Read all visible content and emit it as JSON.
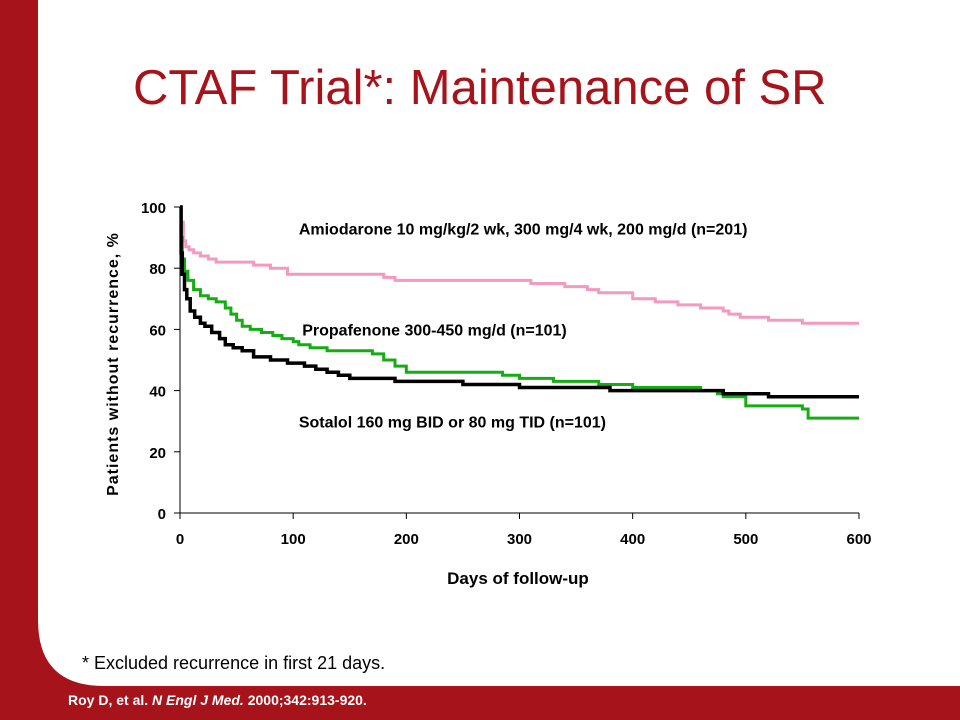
{
  "slide": {
    "title": "CTAF Trial*: Maintenance of SR",
    "footnote": "* Excluded recurrence in first 21 days.",
    "citation": {
      "authors": "Roy D, et al. ",
      "journal": "N Engl J Med.",
      "details": " 2000;342:913-920."
    }
  },
  "colors": {
    "brand_red": "#a6131a",
    "amiodarone": "#f49ac1",
    "propafenone": "#14ad14",
    "sotalol": "#000000"
  },
  "chart_data": {
    "type": "line",
    "step": true,
    "title": "",
    "xlabel": "Days of follow-up",
    "ylabel": "Patients without recurrence, %",
    "xlim": [
      0,
      600
    ],
    "ylim": [
      0,
      100
    ],
    "xticks": [
      0,
      100,
      200,
      300,
      400,
      500,
      600
    ],
    "yticks": [
      0,
      20,
      40,
      60,
      80,
      100
    ],
    "grid": false,
    "legend": "inline-labels",
    "series": [
      {
        "name": "Amiodarone 10 mg/kg/2 wk, 300 mg/4 wk, 200 mg/d (n=201)",
        "color": "#f49ac1",
        "x": [
          0,
          1,
          3,
          5,
          8,
          12,
          18,
          25,
          32,
          40,
          65,
          80,
          95,
          180,
          190,
          270,
          310,
          325,
          340,
          360,
          370,
          380,
          400,
          420,
          440,
          460,
          470,
          480,
          485,
          495,
          520,
          545,
          550,
          600
        ],
        "y": [
          100,
          95,
          89,
          87,
          86,
          85,
          84,
          83,
          82,
          82,
          81,
          80,
          78,
          77,
          76,
          76,
          75,
          75,
          74,
          73,
          72,
          72,
          70,
          69,
          68,
          67,
          67,
          66,
          65,
          64,
          63,
          63,
          62,
          62
        ]
      },
      {
        "name": "Propafenone 300-450 mg/d (n=101)",
        "color": "#14ad14",
        "x": [
          0,
          1,
          2,
          4,
          7,
          12,
          18,
          25,
          32,
          40,
          45,
          50,
          55,
          62,
          72,
          82,
          90,
          100,
          105,
          115,
          130,
          160,
          170,
          180,
          190,
          200,
          260,
          285,
          300,
          330,
          370,
          400,
          460,
          475,
          480,
          500,
          530,
          550,
          555,
          600
        ],
        "y": [
          100,
          90,
          83,
          79,
          76,
          73,
          71,
          70,
          69,
          67,
          65,
          63,
          61,
          60,
          59,
          58,
          57,
          56,
          55,
          54,
          53,
          53,
          52,
          50,
          48,
          46,
          46,
          45,
          44,
          43,
          42,
          41,
          40,
          39,
          38,
          35,
          35,
          34,
          31,
          31
        ]
      },
      {
        "name": "Sotalol 160 mg BID or 80 mg TID (n=101)",
        "color": "#000000",
        "x": [
          0,
          1,
          2,
          4,
          6,
          9,
          13,
          18,
          22,
          28,
          35,
          40,
          47,
          55,
          65,
          80,
          95,
          110,
          120,
          130,
          140,
          150,
          190,
          220,
          250,
          270,
          300,
          330,
          360,
          380,
          410,
          440,
          480,
          500,
          520,
          600
        ],
        "y": [
          100,
          85,
          78,
          73,
          70,
          66,
          64,
          62,
          61,
          59,
          57,
          55,
          54,
          53,
          51,
          50,
          49,
          48,
          47,
          46,
          45,
          44,
          43,
          43,
          42,
          42,
          41,
          41,
          41,
          40,
          40,
          40,
          39,
          39,
          38,
          38
        ]
      }
    ],
    "annotations": [
      {
        "series": 0,
        "x": 105,
        "y": 91,
        "text": "Amiodarone 10 mg/kg/2 wk, 300 mg/4 wk, 200 mg/d (n=201)"
      },
      {
        "series": 1,
        "x": 108,
        "y": 58,
        "text": "Propafenone 300-450 mg/d (n=101)"
      },
      {
        "series": 2,
        "x": 105,
        "y": 28,
        "text": "Sotalol 160 mg BID or 80 mg TID (n=101)"
      }
    ]
  }
}
